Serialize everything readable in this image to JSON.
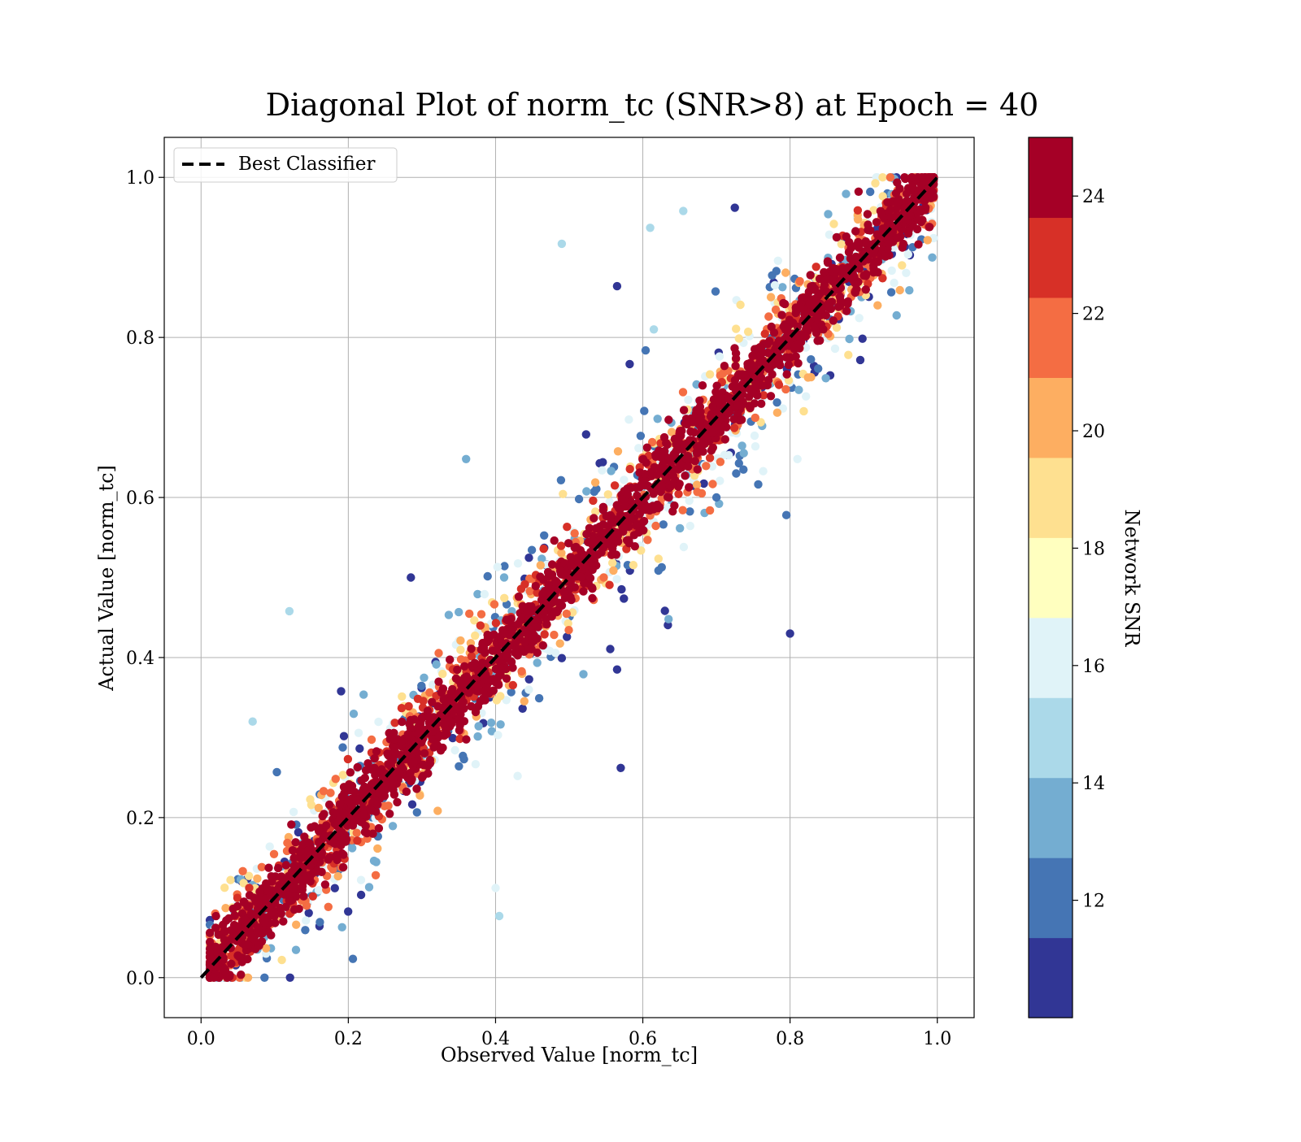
{
  "chart_data": {
    "type": "scatter",
    "title": "Diagonal Plot of norm_tc (SNR>8) at Epoch = 40",
    "xlabel": "Observed Value [norm_tc]",
    "ylabel": "Actual Value [norm_tc]",
    "xlim": [
      -0.05,
      1.05
    ],
    "ylim": [
      -0.05,
      1.05
    ],
    "xticks": [
      "0.0",
      "0.2",
      "0.4",
      "0.6",
      "0.8",
      "1.0"
    ],
    "yticks": [
      "0.0",
      "0.2",
      "0.4",
      "0.6",
      "0.8",
      "1.0"
    ],
    "grid": true,
    "legend": {
      "placement": "top-left",
      "entries": [
        {
          "label": "Best Classifier",
          "style": "dashed",
          "color": "#000000"
        }
      ]
    },
    "reference_line": {
      "label": "Best Classifier",
      "x": [
        0.0,
        1.0
      ],
      "y": [
        0.0,
        1.0
      ]
    },
    "colorbar": {
      "label": "Network SNR",
      "range": [
        10,
        25
      ],
      "ticks": [
        "12",
        "14",
        "16",
        "18",
        "20",
        "22",
        "24"
      ],
      "colors": [
        "#313695",
        "#4575b4",
        "#74add1",
        "#abd9e9",
        "#e0f3f8",
        "#ffffbf",
        "#fee090",
        "#fdae61",
        "#f46d43",
        "#d73027",
        "#a50026"
      ]
    },
    "outliers": [
      {
        "x": 0.49,
        "y": 0.917,
        "snr": 14.5
      },
      {
        "x": 0.61,
        "y": 0.937,
        "snr": 14.5
      },
      {
        "x": 0.655,
        "y": 0.958,
        "snr": 14.5
      },
      {
        "x": 0.725,
        "y": 0.962,
        "snr": 10.5
      },
      {
        "x": 0.565,
        "y": 0.864,
        "snr": 10.5
      },
      {
        "x": 0.615,
        "y": 0.81,
        "snr": 14.5
      },
      {
        "x": 0.36,
        "y": 0.648,
        "snr": 13
      },
      {
        "x": 0.12,
        "y": 0.458,
        "snr": 14.5
      },
      {
        "x": 0.07,
        "y": 0.32,
        "snr": 14.5
      },
      {
        "x": 0.57,
        "y": 0.262,
        "snr": 10.5
      },
      {
        "x": 0.4,
        "y": 0.112,
        "snr": 15.5
      },
      {
        "x": 0.405,
        "y": 0.077,
        "snr": 14.5
      },
      {
        "x": 0.8,
        "y": 0.43,
        "snr": 10.5
      },
      {
        "x": 0.795,
        "y": 0.578,
        "snr": 12.5
      },
      {
        "x": 0.635,
        "y": 0.448,
        "snr": 13
      },
      {
        "x": 0.565,
        "y": 0.385,
        "snr": 10.5
      },
      {
        "x": 0.285,
        "y": 0.5,
        "snr": 10.5
      },
      {
        "x": 0.43,
        "y": 0.252,
        "snr": 15.5
      },
      {
        "x": 0.81,
        "y": 0.648,
        "snr": 16.5
      },
      {
        "x": 0.7,
        "y": 0.6,
        "snr": 12
      }
    ]
  }
}
